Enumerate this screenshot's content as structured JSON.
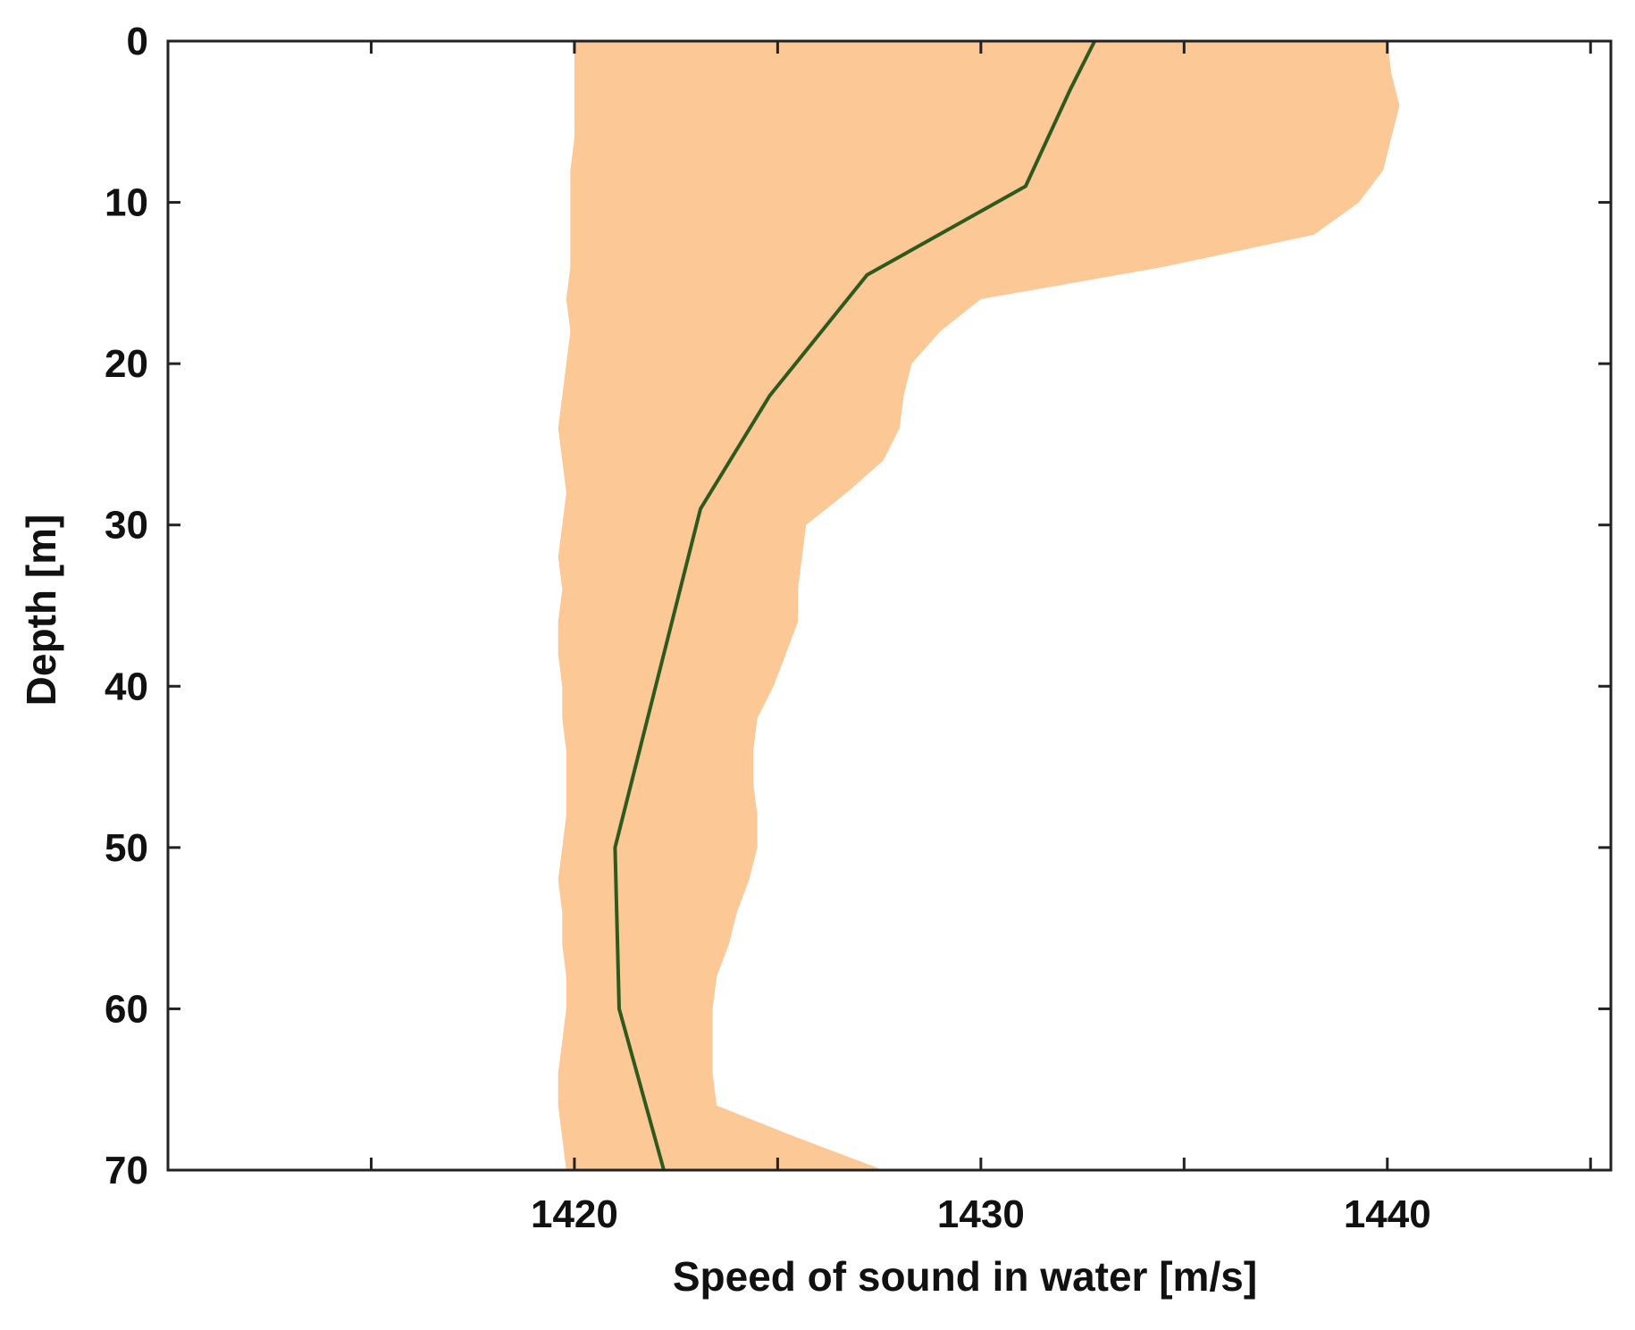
{
  "chart_data": {
    "type": "area",
    "title": "",
    "xlabel": "Speed of sound in water [m/s]",
    "ylabel": "Depth [m]",
    "xlim": [
      1410,
      1445.5
    ],
    "ylim": [
      0,
      70
    ],
    "y_inverted": true,
    "grid": false,
    "x_ticks": [
      1410,
      1415,
      1420,
      1425,
      1430,
      1435,
      1440,
      1445
    ],
    "x_tick_labels": [
      "1420",
      "1430",
      "1440"
    ],
    "x_tick_label_values": [
      1420,
      1430,
      1440
    ],
    "y_ticks": [
      0,
      10,
      20,
      30,
      40,
      50,
      60,
      70
    ],
    "y_tick_labels": [
      "0",
      "10",
      "20",
      "30",
      "40",
      "50",
      "60",
      "70"
    ],
    "colors": {
      "band": "#fcc896",
      "mean_line": "#2f5a1e",
      "axis": "#222222"
    },
    "series": [
      {
        "kind": "band",
        "depth": [
          0,
          2,
          4,
          6,
          8,
          10,
          12,
          14,
          16,
          18,
          20,
          22,
          24,
          26,
          28,
          30,
          32,
          34,
          36,
          38,
          40,
          42,
          44,
          46,
          48,
          50,
          52,
          54,
          56,
          58,
          60,
          62,
          64,
          66,
          68,
          70
        ],
        "lower": [
          1420.0,
          1420.0,
          1420.0,
          1420.0,
          1419.9,
          1419.9,
          1419.9,
          1419.9,
          1419.8,
          1419.9,
          1419.8,
          1419.7,
          1419.6,
          1419.7,
          1419.8,
          1419.7,
          1419.6,
          1419.7,
          1419.6,
          1419.6,
          1419.7,
          1419.7,
          1419.8,
          1419.8,
          1419.8,
          1419.7,
          1419.6,
          1419.7,
          1419.7,
          1419.8,
          1419.8,
          1419.7,
          1419.6,
          1419.6,
          1419.7,
          1419.8
        ],
        "upper": [
          1440.0,
          1440.1,
          1440.3,
          1440.1,
          1439.9,
          1439.3,
          1438.2,
          1434.5,
          1430.0,
          1429.0,
          1428.3,
          1428.1,
          1428.0,
          1427.6,
          1426.7,
          1425.7,
          1425.6,
          1425.5,
          1425.5,
          1425.2,
          1424.9,
          1424.5,
          1424.4,
          1424.4,
          1424.5,
          1424.5,
          1424.3,
          1424.0,
          1423.8,
          1423.5,
          1423.4,
          1423.4,
          1423.4,
          1423.5,
          1425.5,
          1427.6
        ]
      },
      {
        "kind": "line",
        "depth": [
          0,
          3,
          9,
          14.5,
          22,
          29,
          40,
          50,
          60,
          70
        ],
        "speed": [
          1432.8,
          1432.2,
          1431.1,
          1427.2,
          1424.8,
          1423.1,
          1422.0,
          1421.0,
          1421.1,
          1422.2
        ]
      }
    ]
  }
}
